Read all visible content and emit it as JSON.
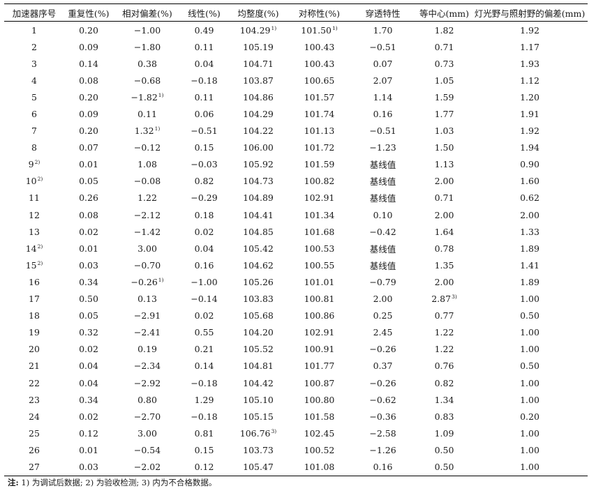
{
  "table": {
    "headers": [
      "加速器序号",
      "重复性(%)",
      "相对偏差(%)",
      "线性(%)",
      "均整度(%)",
      "对称性(%)",
      "穿透特性",
      "等中心(mm)",
      "灯光野与照射野的偏差(mm)"
    ],
    "rows": [
      [
        {
          "v": "1"
        },
        {
          "v": "0.20"
        },
        {
          "v": "−1.00"
        },
        {
          "v": "0.49"
        },
        {
          "v": "104.29",
          "sup": "1)"
        },
        {
          "v": "101.50",
          "sup": "1)"
        },
        {
          "v": "1.70"
        },
        {
          "v": "1.82"
        },
        {
          "v": "1.92"
        }
      ],
      [
        {
          "v": "2"
        },
        {
          "v": "0.09"
        },
        {
          "v": "−1.80"
        },
        {
          "v": "0.11"
        },
        {
          "v": "105.19"
        },
        {
          "v": "100.43"
        },
        {
          "v": "−0.51"
        },
        {
          "v": "0.71"
        },
        {
          "v": "1.17"
        }
      ],
      [
        {
          "v": "3"
        },
        {
          "v": "0.14"
        },
        {
          "v": "0.38"
        },
        {
          "v": "0.04"
        },
        {
          "v": "104.71"
        },
        {
          "v": "100.43"
        },
        {
          "v": "0.07"
        },
        {
          "v": "0.73"
        },
        {
          "v": "1.93"
        }
      ],
      [
        {
          "v": "4"
        },
        {
          "v": "0.08"
        },
        {
          "v": "−0.68"
        },
        {
          "v": "−0.18"
        },
        {
          "v": "103.87"
        },
        {
          "v": "100.65"
        },
        {
          "v": "2.07"
        },
        {
          "v": "1.05"
        },
        {
          "v": "1.12"
        }
      ],
      [
        {
          "v": "5"
        },
        {
          "v": "0.20"
        },
        {
          "v": "−1.82",
          "sup": "1)"
        },
        {
          "v": "0.11"
        },
        {
          "v": "104.86"
        },
        {
          "v": "101.57"
        },
        {
          "v": "1.14"
        },
        {
          "v": "1.59"
        },
        {
          "v": "1.20"
        }
      ],
      [
        {
          "v": "6"
        },
        {
          "v": "0.09"
        },
        {
          "v": "0.11"
        },
        {
          "v": "0.06"
        },
        {
          "v": "104.29"
        },
        {
          "v": "101.74"
        },
        {
          "v": "0.16"
        },
        {
          "v": "1.77"
        },
        {
          "v": "1.91"
        }
      ],
      [
        {
          "v": "7"
        },
        {
          "v": "0.20"
        },
        {
          "v": "1.32",
          "sup": "1)"
        },
        {
          "v": "−0.51"
        },
        {
          "v": "104.22"
        },
        {
          "v": "101.13"
        },
        {
          "v": "−0.51"
        },
        {
          "v": "1.03"
        },
        {
          "v": "1.92"
        }
      ],
      [
        {
          "v": "8"
        },
        {
          "v": "0.07"
        },
        {
          "v": "−0.12"
        },
        {
          "v": "0.15"
        },
        {
          "v": "106.00"
        },
        {
          "v": "101.72"
        },
        {
          "v": "−1.23"
        },
        {
          "v": "1.50"
        },
        {
          "v": "1.94"
        }
      ],
      [
        {
          "v": "9",
          "sup": "2)"
        },
        {
          "v": "0.01"
        },
        {
          "v": "1.08"
        },
        {
          "v": "−0.03"
        },
        {
          "v": "105.92"
        },
        {
          "v": "101.59"
        },
        {
          "v": "基线值"
        },
        {
          "v": "1.13"
        },
        {
          "v": "0.90"
        }
      ],
      [
        {
          "v": "10",
          "sup": "2)"
        },
        {
          "v": "0.05"
        },
        {
          "v": "−0.08"
        },
        {
          "v": "0.82"
        },
        {
          "v": "104.73"
        },
        {
          "v": "100.82"
        },
        {
          "v": "基线值"
        },
        {
          "v": "2.00"
        },
        {
          "v": "1.60"
        }
      ],
      [
        {
          "v": "11"
        },
        {
          "v": "0.26"
        },
        {
          "v": "1.22"
        },
        {
          "v": "−0.29"
        },
        {
          "v": "104.89"
        },
        {
          "v": "102.91"
        },
        {
          "v": "基线值"
        },
        {
          "v": "0.71"
        },
        {
          "v": "0.62"
        }
      ],
      [
        {
          "v": "12"
        },
        {
          "v": "0.08"
        },
        {
          "v": "−2.12"
        },
        {
          "v": "0.18"
        },
        {
          "v": "104.41"
        },
        {
          "v": "101.34"
        },
        {
          "v": "0.10"
        },
        {
          "v": "2.00"
        },
        {
          "v": "2.00"
        }
      ],
      [
        {
          "v": "13"
        },
        {
          "v": "0.02"
        },
        {
          "v": "−1.42"
        },
        {
          "v": "0.02"
        },
        {
          "v": "104.85"
        },
        {
          "v": "101.68"
        },
        {
          "v": "−0.42"
        },
        {
          "v": "1.64"
        },
        {
          "v": "1.33"
        }
      ],
      [
        {
          "v": "14",
          "sup": "2)"
        },
        {
          "v": "0.01"
        },
        {
          "v": "3.00"
        },
        {
          "v": "0.04"
        },
        {
          "v": "105.42"
        },
        {
          "v": "100.53"
        },
        {
          "v": "基线值"
        },
        {
          "v": "0.78"
        },
        {
          "v": "1.89"
        }
      ],
      [
        {
          "v": "15",
          "sup": "2)"
        },
        {
          "v": "0.03"
        },
        {
          "v": "−0.70"
        },
        {
          "v": "0.16"
        },
        {
          "v": "104.62"
        },
        {
          "v": "100.55"
        },
        {
          "v": "基线值"
        },
        {
          "v": "1.35"
        },
        {
          "v": "1.41"
        }
      ],
      [
        {
          "v": "16"
        },
        {
          "v": "0.34"
        },
        {
          "v": "−0.26",
          "sup": "1)"
        },
        {
          "v": "−1.00"
        },
        {
          "v": "105.26"
        },
        {
          "v": "101.01"
        },
        {
          "v": "−0.79"
        },
        {
          "v": "2.00"
        },
        {
          "v": "1.89"
        }
      ],
      [
        {
          "v": "17"
        },
        {
          "v": "0.50"
        },
        {
          "v": "0.13"
        },
        {
          "v": "−0.14"
        },
        {
          "v": "103.83"
        },
        {
          "v": "100.81"
        },
        {
          "v": "2.00"
        },
        {
          "v": "2.87",
          "sup": "3)"
        },
        {
          "v": "1.00"
        }
      ],
      [
        {
          "v": "18"
        },
        {
          "v": "0.05"
        },
        {
          "v": "−2.91"
        },
        {
          "v": "0.02"
        },
        {
          "v": "105.68"
        },
        {
          "v": "100.86"
        },
        {
          "v": "0.25"
        },
        {
          "v": "0.77"
        },
        {
          "v": "0.50"
        }
      ],
      [
        {
          "v": "19"
        },
        {
          "v": "0.32"
        },
        {
          "v": "−2.41"
        },
        {
          "v": "0.55"
        },
        {
          "v": "104.20"
        },
        {
          "v": "102.91"
        },
        {
          "v": "2.45"
        },
        {
          "v": "1.22"
        },
        {
          "v": "1.00"
        }
      ],
      [
        {
          "v": "20"
        },
        {
          "v": "0.02"
        },
        {
          "v": "0.19"
        },
        {
          "v": "0.21"
        },
        {
          "v": "105.52"
        },
        {
          "v": "100.91"
        },
        {
          "v": "−0.26"
        },
        {
          "v": "1.22"
        },
        {
          "v": "1.00"
        }
      ],
      [
        {
          "v": "21"
        },
        {
          "v": "0.04"
        },
        {
          "v": "−2.34"
        },
        {
          "v": "0.14"
        },
        {
          "v": "104.81"
        },
        {
          "v": "101.77"
        },
        {
          "v": "0.37"
        },
        {
          "v": "0.76"
        },
        {
          "v": "0.50"
        }
      ],
      [
        {
          "v": "22"
        },
        {
          "v": "0.04"
        },
        {
          "v": "−2.92"
        },
        {
          "v": "−0.18"
        },
        {
          "v": "104.42"
        },
        {
          "v": "100.87"
        },
        {
          "v": "−0.26"
        },
        {
          "v": "0.82"
        },
        {
          "v": "1.00"
        }
      ],
      [
        {
          "v": "23"
        },
        {
          "v": "0.34"
        },
        {
          "v": "0.80"
        },
        {
          "v": "1.29"
        },
        {
          "v": "105.10"
        },
        {
          "v": "100.80"
        },
        {
          "v": "−0.62"
        },
        {
          "v": "1.34"
        },
        {
          "v": "1.00"
        }
      ],
      [
        {
          "v": "24"
        },
        {
          "v": "0.02"
        },
        {
          "v": "−2.70"
        },
        {
          "v": "−0.18"
        },
        {
          "v": "105.15"
        },
        {
          "v": "101.58"
        },
        {
          "v": "−0.36"
        },
        {
          "v": "0.83"
        },
        {
          "v": "0.20"
        }
      ],
      [
        {
          "v": "25"
        },
        {
          "v": "0.12"
        },
        {
          "v": "3.00"
        },
        {
          "v": "0.81"
        },
        {
          "v": "106.76",
          "sup": "3)"
        },
        {
          "v": "102.45"
        },
        {
          "v": "−2.58"
        },
        {
          "v": "1.09"
        },
        {
          "v": "1.00"
        }
      ],
      [
        {
          "v": "26"
        },
        {
          "v": "0.01"
        },
        {
          "v": "−0.54"
        },
        {
          "v": "0.15"
        },
        {
          "v": "103.73"
        },
        {
          "v": "100.52"
        },
        {
          "v": "−1.26"
        },
        {
          "v": "0.50"
        },
        {
          "v": "1.00"
        }
      ],
      [
        {
          "v": "27"
        },
        {
          "v": "0.03"
        },
        {
          "v": "−2.02"
        },
        {
          "v": "0.12"
        },
        {
          "v": "105.47"
        },
        {
          "v": "101.08"
        },
        {
          "v": "0.16"
        },
        {
          "v": "0.50"
        },
        {
          "v": "1.00"
        }
      ]
    ]
  },
  "note": {
    "label": "注:",
    "text": "1) 为调试后数据; 2) 为验收检测; 3) 内为不合格数据。"
  }
}
